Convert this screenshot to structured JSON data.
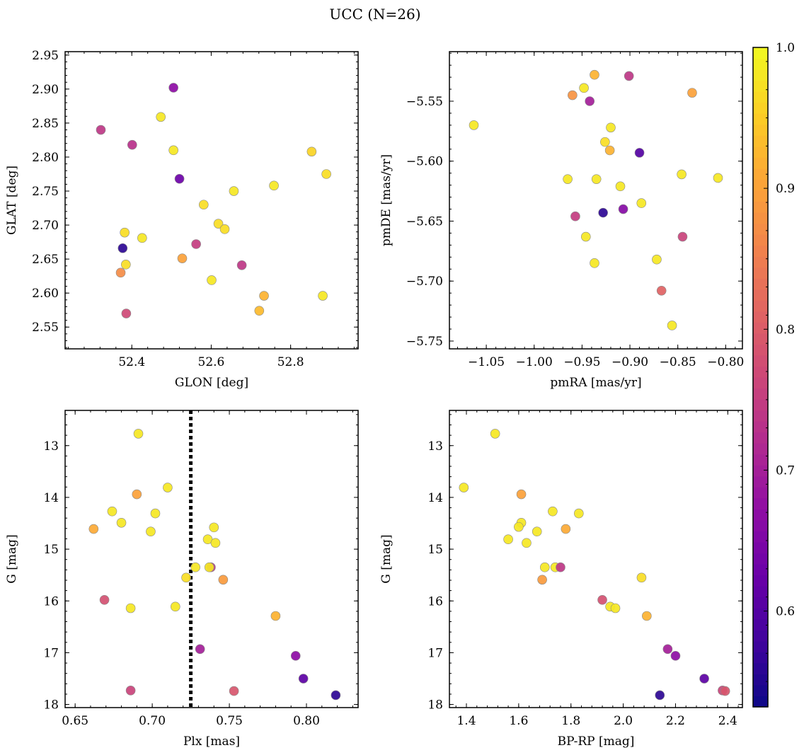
{
  "figure": {
    "title": "UCC (N=26)"
  },
  "colorbar": {
    "range": [
      0.532,
      1.0
    ],
    "ticks": [
      0.6,
      0.7,
      0.8,
      0.9,
      1.0
    ],
    "tick_labels": [
      "0.6",
      "0.7",
      "0.8",
      "0.9",
      "1.0"
    ],
    "colormap": "plasma"
  },
  "chart_data": [
    {
      "type": "scatter",
      "id": "glon-glat",
      "title": "",
      "xlabel": "GLON [deg]",
      "ylabel": "GLAT [deg]",
      "xlim": [
        52.232,
        52.97
      ],
      "ylim": [
        2.518,
        2.955
      ],
      "y_inverted": false,
      "xticks": [
        52.4,
        52.6,
        52.8
      ],
      "xtick_labels": [
        "52.4",
        "52.6",
        "52.8"
      ],
      "yticks": [
        2.55,
        2.6,
        2.65,
        2.7,
        2.75,
        2.8,
        2.85,
        2.9,
        2.95
      ],
      "ytick_labels": [
        "2.55",
        "2.60",
        "2.65",
        "2.70",
        "2.75",
        "2.80",
        "2.85",
        "2.90",
        "2.95"
      ],
      "points": [
        {
          "x": 52.322,
          "y": 2.84,
          "c": 0.74
        },
        {
          "x": 52.401,
          "y": 2.818,
          "c": 0.73
        },
        {
          "x": 52.505,
          "y": 2.902,
          "c": 0.67
        },
        {
          "x": 52.473,
          "y": 2.859,
          "c": 0.98
        },
        {
          "x": 52.505,
          "y": 2.81,
          "c": 0.98
        },
        {
          "x": 52.52,
          "y": 2.768,
          "c": 0.63
        },
        {
          "x": 52.377,
          "y": 2.666,
          "c": 0.56
        },
        {
          "x": 52.382,
          "y": 2.689,
          "c": 0.97
        },
        {
          "x": 52.426,
          "y": 2.681,
          "c": 0.98
        },
        {
          "x": 52.385,
          "y": 2.642,
          "c": 0.97
        },
        {
          "x": 52.372,
          "y": 2.63,
          "c": 0.87
        },
        {
          "x": 52.386,
          "y": 2.57,
          "c": 0.77
        },
        {
          "x": 52.527,
          "y": 2.651,
          "c": 0.9
        },
        {
          "x": 52.562,
          "y": 2.672,
          "c": 0.75
        },
        {
          "x": 52.581,
          "y": 2.73,
          "c": 0.97
        },
        {
          "x": 52.618,
          "y": 2.702,
          "c": 0.97
        },
        {
          "x": 52.634,
          "y": 2.694,
          "c": 0.97
        },
        {
          "x": 52.601,
          "y": 2.619,
          "c": 0.98
        },
        {
          "x": 52.657,
          "y": 2.75,
          "c": 0.98
        },
        {
          "x": 52.677,
          "y": 2.641,
          "c": 0.74
        },
        {
          "x": 52.758,
          "y": 2.758,
          "c": 0.98
        },
        {
          "x": 52.733,
          "y": 2.596,
          "c": 0.92
        },
        {
          "x": 52.721,
          "y": 2.574,
          "c": 0.93
        },
        {
          "x": 52.853,
          "y": 2.808,
          "c": 0.96
        },
        {
          "x": 52.89,
          "y": 2.775,
          "c": 0.97
        },
        {
          "x": 52.881,
          "y": 2.596,
          "c": 0.98
        }
      ]
    },
    {
      "type": "scatter",
      "id": "pmra-pmde",
      "title": "",
      "xlabel": "pmRA [mas/yr]",
      "ylabel": "pmDE [mas/yr]",
      "xlim": [
        -1.0885,
        -0.7825
      ],
      "ylim": [
        -5.7565,
        -5.5087
      ],
      "y_inverted": false,
      "xticks": [
        -1.05,
        -1.0,
        -0.95,
        -0.9,
        -0.85,
        -0.8
      ],
      "xtick_labels": [
        "−1.05",
        "−1.00",
        "−0.95",
        "−0.90",
        "−0.85",
        "−0.80"
      ],
      "yticks": [
        -5.75,
        -5.7,
        -5.65,
        -5.6,
        -5.55
      ],
      "ytick_labels": [
        "−5.75",
        "−5.70",
        "−5.65",
        "−5.60",
        "−5.55"
      ],
      "points": [
        {
          "x": -1.063,
          "y": -5.57,
          "c": 0.98
        },
        {
          "x": -0.937,
          "y": -5.528,
          "c": 0.92
        },
        {
          "x": -0.948,
          "y": -5.539,
          "c": 0.98
        },
        {
          "x": -0.96,
          "y": -5.545,
          "c": 0.88
        },
        {
          "x": -0.942,
          "y": -5.55,
          "c": 0.7
        },
        {
          "x": -0.901,
          "y": -5.529,
          "c": 0.74
        },
        {
          "x": -0.835,
          "y": -5.543,
          "c": 0.9
        },
        {
          "x": -0.92,
          "y": -5.572,
          "c": 0.98
        },
        {
          "x": -0.926,
          "y": -5.584,
          "c": 0.97
        },
        {
          "x": -0.921,
          "y": -5.591,
          "c": 0.92
        },
        {
          "x": -0.89,
          "y": -5.593,
          "c": 0.6
        },
        {
          "x": -0.965,
          "y": -5.615,
          "c": 0.98
        },
        {
          "x": -0.935,
          "y": -5.615,
          "c": 0.98
        },
        {
          "x": -0.91,
          "y": -5.621,
          "c": 0.98
        },
        {
          "x": -0.846,
          "y": -5.611,
          "c": 0.98
        },
        {
          "x": -0.808,
          "y": -5.614,
          "c": 0.98
        },
        {
          "x": -0.888,
          "y": -5.635,
          "c": 0.98
        },
        {
          "x": -0.907,
          "y": -5.64,
          "c": 0.66
        },
        {
          "x": -0.928,
          "y": -5.643,
          "c": 0.56
        },
        {
          "x": -0.957,
          "y": -5.646,
          "c": 0.75
        },
        {
          "x": -0.946,
          "y": -5.663,
          "c": 0.98
        },
        {
          "x": -0.845,
          "y": -5.663,
          "c": 0.76
        },
        {
          "x": -0.937,
          "y": -5.685,
          "c": 0.98
        },
        {
          "x": -0.872,
          "y": -5.682,
          "c": 0.98
        },
        {
          "x": -0.867,
          "y": -5.708,
          "c": 0.81
        },
        {
          "x": -0.856,
          "y": -5.737,
          "c": 0.98
        }
      ]
    },
    {
      "type": "scatter",
      "id": "plx-g",
      "title": "",
      "xlabel": "Plx [mas]",
      "ylabel": "G [mag]",
      "xlim": [
        0.6435,
        0.8335
      ],
      "ylim": [
        18.06,
        12.32
      ],
      "y_inverted": true,
      "xticks": [
        0.65,
        0.7,
        0.75,
        0.8
      ],
      "xtick_labels": [
        "0.65",
        "0.70",
        "0.75",
        "0.80"
      ],
      "yticks": [
        13,
        14,
        15,
        16,
        17,
        18
      ],
      "ytick_labels": [
        "13",
        "14",
        "15",
        "16",
        "17",
        "18"
      ],
      "vline": {
        "x": 0.725,
        "style": "dotted",
        "color": "#000000"
      },
      "points": [
        {
          "x": 0.691,
          "y": 12.77,
          "c": 0.98
        },
        {
          "x": 0.71,
          "y": 13.81,
          "c": 0.98
        },
        {
          "x": 0.69,
          "y": 13.94,
          "c": 0.9
        },
        {
          "x": 0.674,
          "y": 14.27,
          "c": 0.98
        },
        {
          "x": 0.702,
          "y": 14.31,
          "c": 0.98
        },
        {
          "x": 0.68,
          "y": 14.49,
          "c": 0.98
        },
        {
          "x": 0.662,
          "y": 14.61,
          "c": 0.91
        },
        {
          "x": 0.699,
          "y": 14.66,
          "c": 0.98
        },
        {
          "x": 0.74,
          "y": 14.58,
          "c": 0.98
        },
        {
          "x": 0.736,
          "y": 14.81,
          "c": 0.98
        },
        {
          "x": 0.741,
          "y": 14.88,
          "c": 0.98
        },
        {
          "x": 0.738,
          "y": 15.35,
          "c": 0.74
        },
        {
          "x": 0.737,
          "y": 15.35,
          "c": 0.98
        },
        {
          "x": 0.728,
          "y": 15.35,
          "c": 0.98
        },
        {
          "x": 0.722,
          "y": 15.55,
          "c": 0.97
        },
        {
          "x": 0.746,
          "y": 15.59,
          "c": 0.89
        },
        {
          "x": 0.669,
          "y": 15.98,
          "c": 0.78
        },
        {
          "x": 0.686,
          "y": 16.14,
          "c": 0.98
        },
        {
          "x": 0.715,
          "y": 16.11,
          "c": 0.98
        },
        {
          "x": 0.78,
          "y": 16.29,
          "c": 0.92
        },
        {
          "x": 0.731,
          "y": 16.93,
          "c": 0.7
        },
        {
          "x": 0.793,
          "y": 17.06,
          "c": 0.67
        },
        {
          "x": 0.798,
          "y": 17.5,
          "c": 0.61
        },
        {
          "x": 0.686,
          "y": 17.73,
          "c": 0.76
        },
        {
          "x": 0.753,
          "y": 17.74,
          "c": 0.79
        },
        {
          "x": 0.819,
          "y": 17.82,
          "c": 0.56
        }
      ]
    },
    {
      "type": "scatter",
      "id": "bprp-g",
      "title": "",
      "xlabel": "BP-RP [mag]",
      "ylabel": "G [mag]",
      "xlim": [
        1.335,
        2.456
      ],
      "ylim": [
        18.06,
        12.32
      ],
      "y_inverted": true,
      "xticks": [
        1.4,
        1.6,
        1.8,
        2.0,
        2.2,
        2.4
      ],
      "xtick_labels": [
        "1.4",
        "1.6",
        "1.8",
        "2.0",
        "2.2",
        "2.4"
      ],
      "yticks": [
        13,
        14,
        15,
        16,
        17,
        18
      ],
      "ytick_labels": [
        "13",
        "14",
        "15",
        "16",
        "17",
        "18"
      ],
      "points": [
        {
          "x": 1.51,
          "y": 12.77,
          "c": 0.98
        },
        {
          "x": 1.39,
          "y": 13.81,
          "c": 0.98
        },
        {
          "x": 1.61,
          "y": 13.94,
          "c": 0.9
        },
        {
          "x": 1.73,
          "y": 14.27,
          "c": 0.98
        },
        {
          "x": 1.83,
          "y": 14.31,
          "c": 0.98
        },
        {
          "x": 1.61,
          "y": 14.49,
          "c": 0.98
        },
        {
          "x": 1.6,
          "y": 14.57,
          "c": 0.98
        },
        {
          "x": 1.78,
          "y": 14.61,
          "c": 0.91
        },
        {
          "x": 1.67,
          "y": 14.66,
          "c": 0.98
        },
        {
          "x": 1.56,
          "y": 14.81,
          "c": 0.98
        },
        {
          "x": 1.63,
          "y": 14.88,
          "c": 0.98
        },
        {
          "x": 1.7,
          "y": 15.35,
          "c": 0.98
        },
        {
          "x": 1.74,
          "y": 15.35,
          "c": 0.98
        },
        {
          "x": 1.76,
          "y": 15.35,
          "c": 0.74
        },
        {
          "x": 2.07,
          "y": 15.55,
          "c": 0.97
        },
        {
          "x": 1.69,
          "y": 15.59,
          "c": 0.89
        },
        {
          "x": 1.92,
          "y": 15.98,
          "c": 0.78
        },
        {
          "x": 1.95,
          "y": 16.11,
          "c": 0.98
        },
        {
          "x": 1.97,
          "y": 16.14,
          "c": 0.98
        },
        {
          "x": 2.09,
          "y": 16.29,
          "c": 0.92
        },
        {
          "x": 2.17,
          "y": 16.93,
          "c": 0.7
        },
        {
          "x": 2.2,
          "y": 17.06,
          "c": 0.67
        },
        {
          "x": 2.31,
          "y": 17.5,
          "c": 0.61
        },
        {
          "x": 2.38,
          "y": 17.73,
          "c": 0.76
        },
        {
          "x": 2.39,
          "y": 17.74,
          "c": 0.79
        },
        {
          "x": 2.14,
          "y": 17.82,
          "c": 0.56
        }
      ]
    }
  ]
}
